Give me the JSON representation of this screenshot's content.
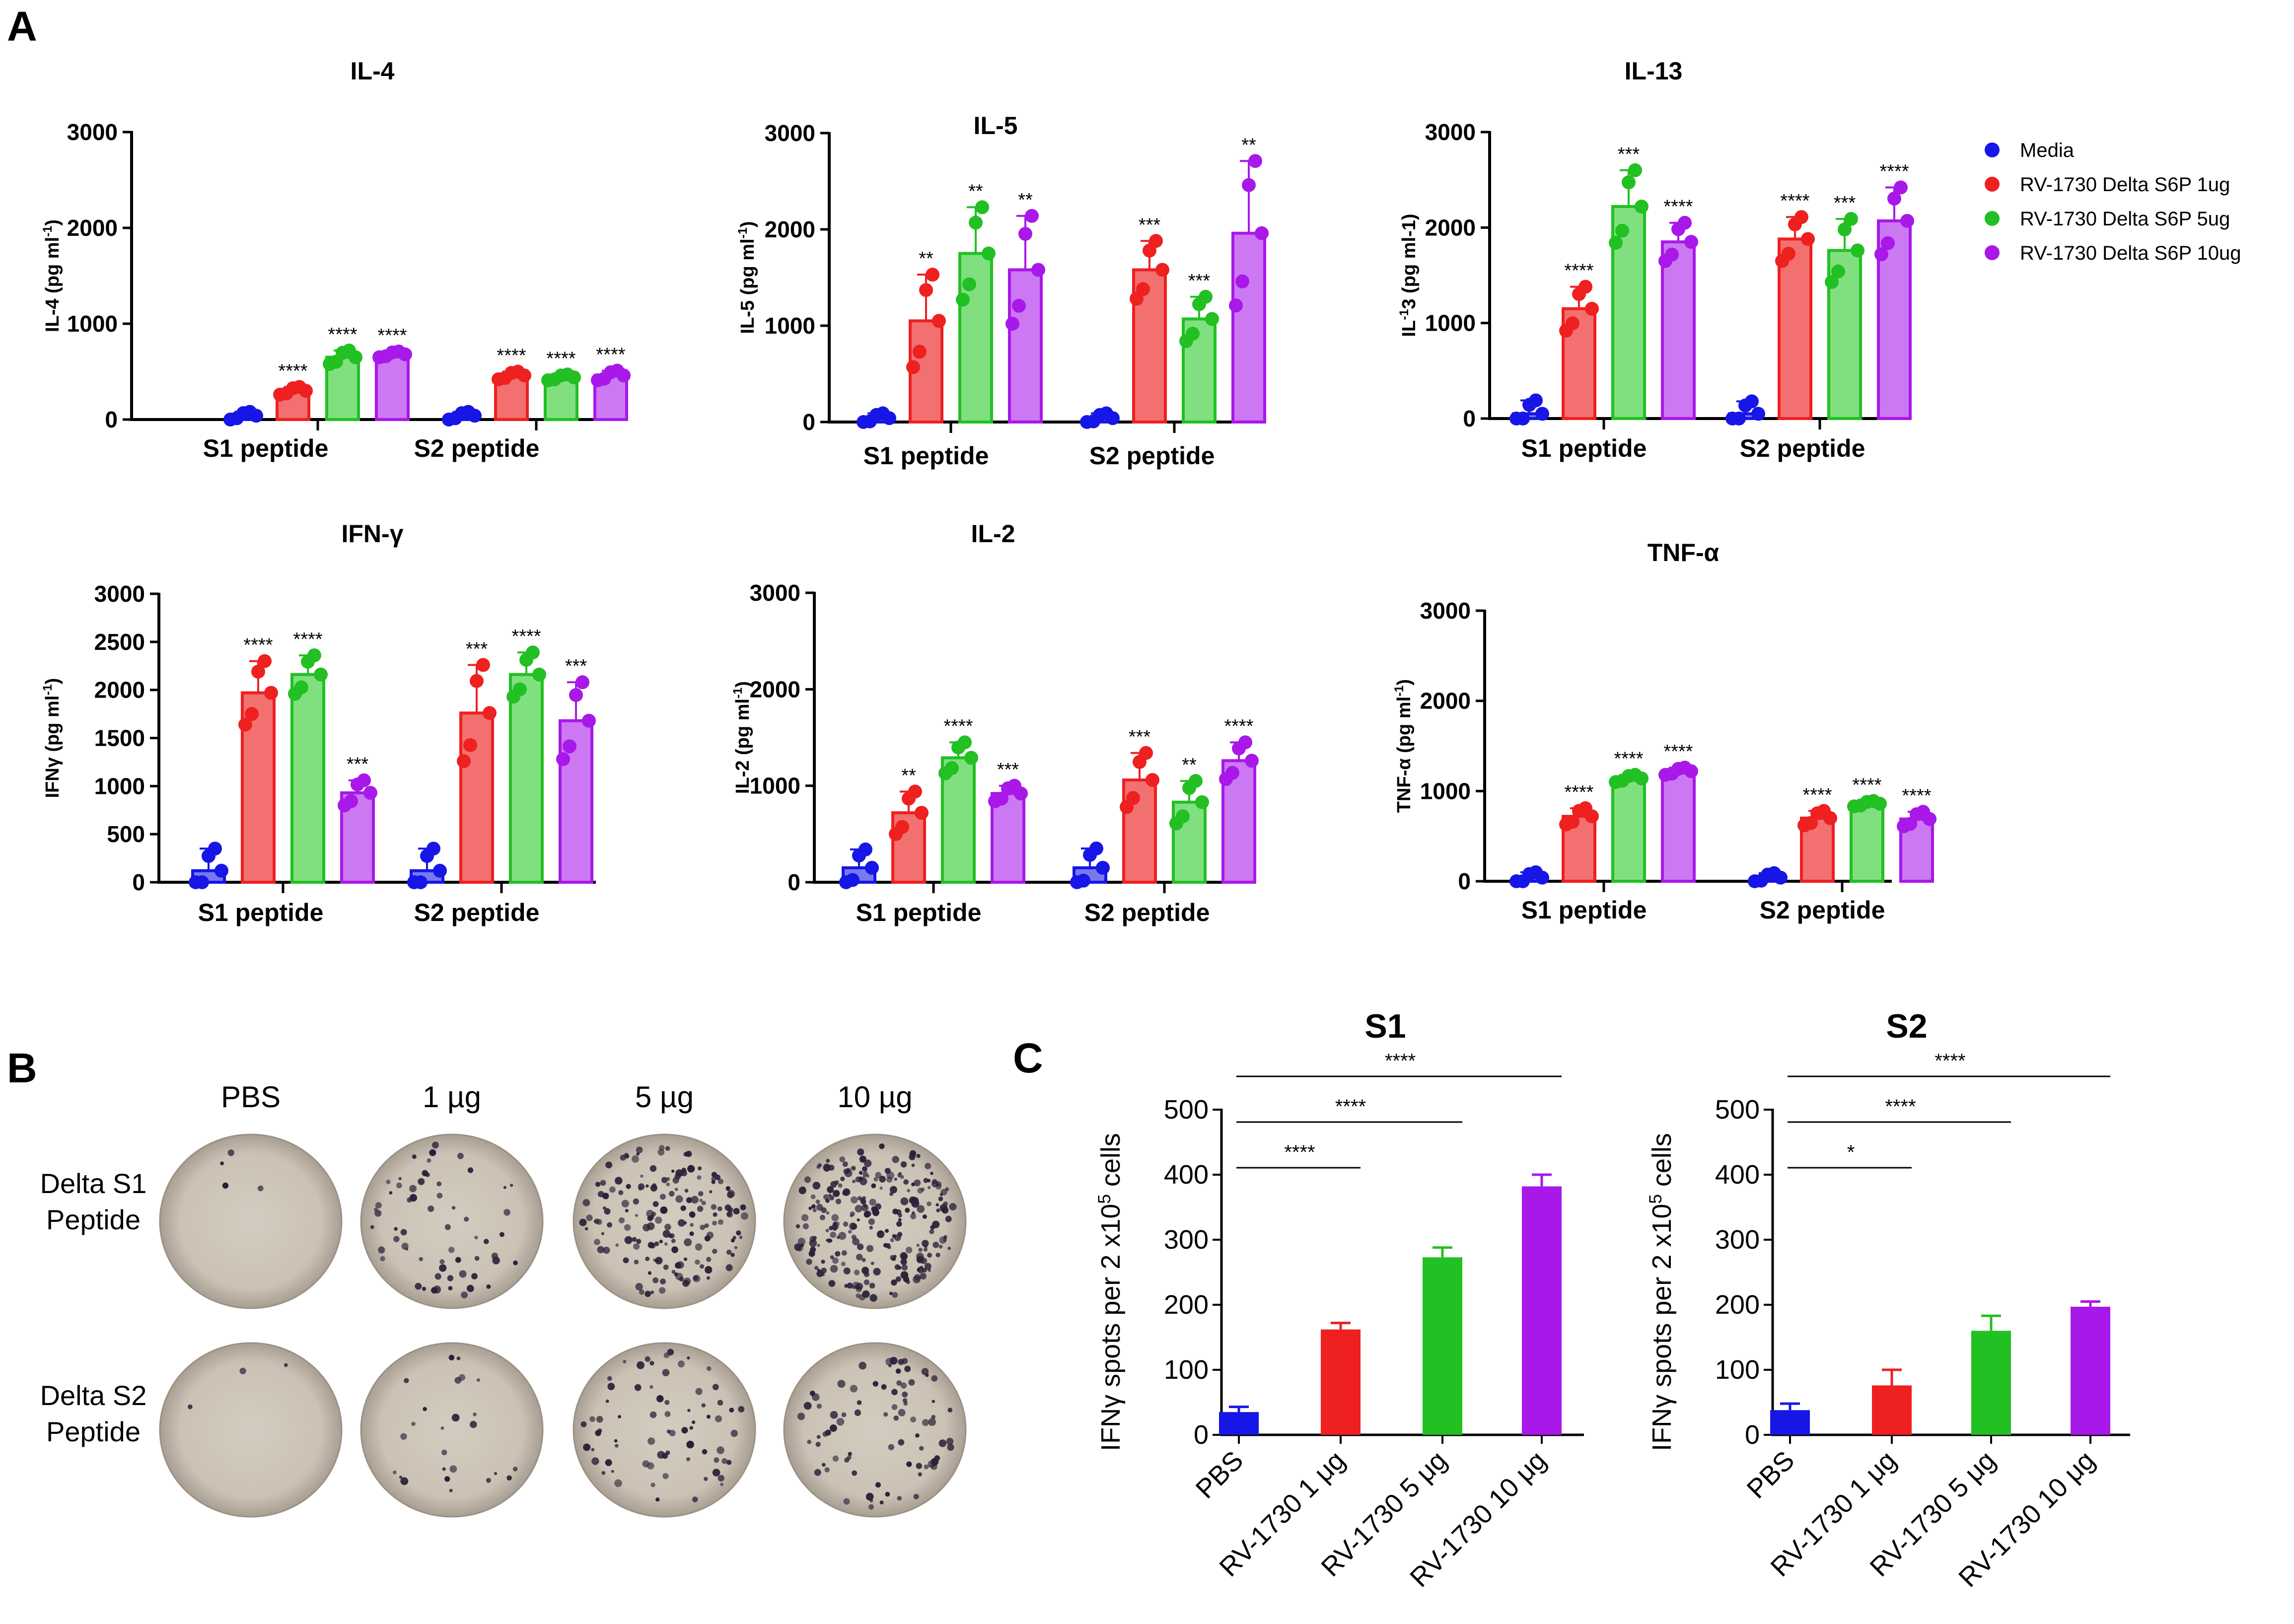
{
  "panel_labels": {
    "a": "A",
    "b": "B",
    "c": "C"
  },
  "colors": {
    "media": "#1616e6",
    "low": "#ee2020",
    "mid": "#22c022",
    "high": "#a818e8",
    "media_fill": "#7878f0",
    "low_fill": "#f27070",
    "mid_fill": "#80e080",
    "high_fill": "#cc78f2"
  },
  "legend": [
    {
      "label": "Media",
      "color": "#1616e6"
    },
    {
      "label": "RV-1730 Delta S6P 1ug",
      "color": "#ee2020"
    },
    {
      "label": "RV-1730 Delta S6P 5ug",
      "color": "#22c022"
    },
    {
      "label": "RV-1730 Delta S6P 10ug",
      "color": "#a818e8"
    }
  ],
  "group_labels": [
    "S1 peptide",
    "S2 peptide"
  ],
  "elispot": {
    "columns": [
      "PBS",
      "1 µg",
      "5 µg",
      "10 µg"
    ],
    "rows": [
      [
        "Delta S1",
        "Peptide"
      ],
      [
        "Delta S2",
        "Peptide"
      ]
    ],
    "spots_s1": [
      4,
      60,
      170,
      260
    ],
    "spots_s2": [
      3,
      25,
      70,
      80
    ]
  },
  "chart_data": [
    {
      "id": "il4",
      "type": "bar",
      "title": "IL-4",
      "ylabel": "IL-4 (pg ml-1)",
      "ylim": [
        0,
        3000
      ],
      "yticks": [
        0,
        1000,
        2000,
        3000
      ],
      "categories": [
        "S1 peptide",
        "S2 peptide"
      ],
      "series": [
        {
          "name": "Media",
          "values": [
            40,
            40
          ],
          "err": [
            40,
            40
          ],
          "sig": [
            "",
            ""
          ]
        },
        {
          "name": "RV-1730 Delta S6P 1ug",
          "values": [
            300,
            460
          ],
          "err": [
            40,
            40
          ],
          "sig": [
            "****",
            "****"
          ]
        },
        {
          "name": "RV-1730 Delta S6P 5ug",
          "values": [
            650,
            440
          ],
          "err": [
            70,
            30
          ],
          "sig": [
            "****",
            "****"
          ]
        },
        {
          "name": "RV-1730 Delta S6P 10ug",
          "values": [
            680,
            460
          ],
          "err": [
            30,
            50
          ],
          "sig": [
            "****",
            "****"
          ]
        }
      ]
    },
    {
      "id": "il5",
      "type": "bar",
      "title": "IL-5",
      "ylabel": "IL-5 (pg ml-1)",
      "ylim": [
        0,
        3000
      ],
      "yticks": [
        0,
        1000,
        2000,
        3000
      ],
      "categories": [
        "S1 peptide",
        "S2 peptide"
      ],
      "series": [
        {
          "name": "Media",
          "values": [
            40,
            40
          ],
          "err": [
            50,
            50
          ],
          "sig": [
            "",
            ""
          ]
        },
        {
          "name": "RV-1730 Delta S6P 1ug",
          "values": [
            1050,
            1580
          ],
          "err": [
            480,
            300
          ],
          "sig": [
            "**",
            "***"
          ]
        },
        {
          "name": "RV-1730 Delta S6P 5ug",
          "values": [
            1750,
            1070
          ],
          "err": [
            480,
            230
          ],
          "sig": [
            "**",
            "***"
          ]
        },
        {
          "name": "RV-1730 Delta S6P 10ug",
          "values": [
            1580,
            1960
          ],
          "err": [
            560,
            750
          ],
          "sig": [
            "**",
            "**"
          ]
        }
      ]
    },
    {
      "id": "il13",
      "type": "bar",
      "title": "IL-13",
      "ylabel": "IL-13 (pg ml-1)",
      "ylim": [
        0,
        3000
      ],
      "yticks": [
        0,
        1000,
        2000,
        3000
      ],
      "categories": [
        "S1 peptide",
        "S2 peptide"
      ],
      "series": [
        {
          "name": "Media",
          "values": [
            50,
            50
          ],
          "err": [
            140,
            130
          ],
          "sig": [
            "",
            ""
          ]
        },
        {
          "name": "RV-1730 Delta S6P 1ug",
          "values": [
            1150,
            1880
          ],
          "err": [
            230,
            230
          ],
          "sig": [
            "****",
            "****"
          ]
        },
        {
          "name": "RV-1730 Delta S6P 5ug",
          "values": [
            2220,
            1760
          ],
          "err": [
            380,
            330
          ],
          "sig": [
            "***",
            "***"
          ]
        },
        {
          "name": "RV-1730 Delta S6P 10ug",
          "values": [
            1850,
            2070
          ],
          "err": [
            200,
            350
          ],
          "sig": [
            "****",
            "****"
          ]
        }
      ]
    },
    {
      "id": "ifng",
      "type": "bar",
      "title": "IFN-γ",
      "ylabel": "IFNγ (pg ml-1)",
      "ylim": [
        0,
        3000
      ],
      "yticks": [
        0,
        500,
        1000,
        1500,
        2000,
        2500,
        3000
      ],
      "categories": [
        "S1 peptide",
        "S2 peptide"
      ],
      "series": [
        {
          "name": "Media",
          "values": [
            120,
            120
          ],
          "err": [
            230,
            230
          ],
          "sig": [
            "",
            ""
          ]
        },
        {
          "name": "RV-1730 Delta S6P 1ug",
          "values": [
            1970,
            1760
          ],
          "err": [
            330,
            500
          ],
          "sig": [
            "****",
            "***"
          ]
        },
        {
          "name": "RV-1730 Delta S6P 5ug",
          "values": [
            2160,
            2160
          ],
          "err": [
            200,
            230
          ],
          "sig": [
            "****",
            "****"
          ]
        },
        {
          "name": "RV-1730 Delta S6P 10ug",
          "values": [
            930,
            1680
          ],
          "err": [
            130,
            400
          ],
          "sig": [
            "***",
            "***"
          ]
        }
      ]
    },
    {
      "id": "il2",
      "type": "bar",
      "title": "IL-2",
      "ylabel": "IL-2 (pg ml-1)",
      "ylim": [
        0,
        3000
      ],
      "yticks": [
        0,
        1000,
        2000,
        3000
      ],
      "categories": [
        "S1 peptide",
        "S2 peptide"
      ],
      "series": [
        {
          "name": "Media",
          "values": [
            150,
            150
          ],
          "err": [
            190,
            200
          ],
          "sig": [
            "",
            ""
          ]
        },
        {
          "name": "RV-1730 Delta S6P 1ug",
          "values": [
            720,
            1060
          ],
          "err": [
            220,
            280
          ],
          "sig": [
            "**",
            "***"
          ]
        },
        {
          "name": "RV-1730 Delta S6P 5ug",
          "values": [
            1290,
            830
          ],
          "err": [
            160,
            220
          ],
          "sig": [
            "****",
            "**"
          ]
        },
        {
          "name": "RV-1730 Delta S6P 10ug",
          "values": [
            920,
            1260
          ],
          "err": [
            80,
            190
          ],
          "sig": [
            "***",
            "****"
          ]
        }
      ]
    },
    {
      "id": "tnfa",
      "type": "bar",
      "title": "TNF-α",
      "ylabel": "TNF-α (pg ml-1)",
      "ylim": [
        0,
        3000
      ],
      "yticks": [
        0,
        1000,
        2000,
        3000
      ],
      "categories": [
        "S1 peptide",
        "S2 peptide"
      ],
      "series": [
        {
          "name": "Media",
          "values": [
            40,
            40
          ],
          "err": [
            60,
            50
          ],
          "sig": [
            "",
            ""
          ]
        },
        {
          "name": "RV-1730 Delta S6P 1ug",
          "values": [
            720,
            700
          ],
          "err": [
            90,
            80
          ],
          "sig": [
            "****",
            "****"
          ]
        },
        {
          "name": "RV-1730 Delta S6P 5ug",
          "values": [
            1140,
            860
          ],
          "err": [
            40,
            30
          ],
          "sig": [
            "****",
            "****"
          ]
        },
        {
          "name": "RV-1730 Delta S6P 10ug",
          "values": [
            1220,
            690
          ],
          "err": [
            40,
            80
          ],
          "sig": [
            "****",
            "****"
          ]
        }
      ]
    },
    {
      "id": "s1",
      "type": "bar",
      "title": "S1",
      "ylabel": "IFNγ spots per 2 x105 cells",
      "ylim": [
        0,
        500
      ],
      "yticks": [
        0,
        100,
        200,
        300,
        400,
        500
      ],
      "categories": [
        "PBS",
        "RV-1730 1 μg",
        "RV-1730 5 μg",
        "RV-1730 10 μg"
      ],
      "values": [
        35,
        162,
        273,
        382
      ],
      "err": [
        8,
        10,
        15,
        18
      ],
      "comparisons": [
        {
          "to": 1,
          "sig": "****"
        },
        {
          "to": 2,
          "sig": "****"
        },
        {
          "to": 3,
          "sig": "****"
        }
      ]
    },
    {
      "id": "s2",
      "type": "bar",
      "title": "S2",
      "ylabel": "IFNγ spots per 2 x105 cells",
      "ylim": [
        0,
        500
      ],
      "yticks": [
        0,
        100,
        200,
        300,
        400,
        500
      ],
      "categories": [
        "PBS",
        "RV-1730 1 μg",
        "RV-1730 5 μg",
        "RV-1730 10 μg"
      ],
      "values": [
        38,
        76,
        160,
        197
      ],
      "err": [
        10,
        24,
        23,
        8
      ],
      "comparisons": [
        {
          "to": 1,
          "sig": "*"
        },
        {
          "to": 2,
          "sig": "****"
        },
        {
          "to": 3,
          "sig": "****"
        }
      ]
    }
  ]
}
